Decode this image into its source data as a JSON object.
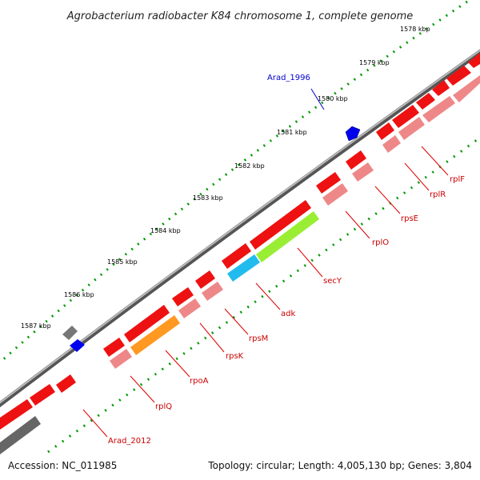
{
  "title": "Agrobacterium radiobacter K84 chromosome 1, complete genome",
  "accession_text": "Accession: NC_011985",
  "summary_text": "Topology: circular; Length: 4,005,130 bp; Genes: 3,804",
  "ruler_labels": [
    "1578 kbp",
    "1579 kbp",
    "1580 kbp",
    "1581 kbp",
    "1582 kbp",
    "1583 kbp",
    "1584 kbp",
    "1585 kbp",
    "1586 kbp",
    "1587 kbp"
  ],
  "genes": [
    {
      "name": "Arad_1996",
      "color": "#0000cc"
    },
    {
      "name": "rplF",
      "color": "#cc0000"
    },
    {
      "name": "rplR",
      "color": "#cc0000"
    },
    {
      "name": "rpsE",
      "color": "#cc0000"
    },
    {
      "name": "rplO",
      "color": "#cc0000"
    },
    {
      "name": "secY",
      "color": "#cc0000"
    },
    {
      "name": "adk",
      "color": "#cc0000"
    },
    {
      "name": "rpsM",
      "color": "#cc0000"
    },
    {
      "name": "rpsK",
      "color": "#cc0000"
    },
    {
      "name": "rpoA",
      "color": "#cc0000"
    },
    {
      "name": "rplQ",
      "color": "#cc0000"
    },
    {
      "name": "Arad_2012",
      "color": "#cc0000"
    }
  ],
  "colors": {
    "backbone": "#888888",
    "ruler_dots": "#009900",
    "cds_forward": "#ee1111",
    "cds_reverse": "#ee8888",
    "blue_feature": "#0000ee",
    "grey_feature": "#777777",
    "secY_overlay": "#99ee33",
    "adk_overlay": "#22bbee",
    "rpoA_overlay": "#ff9922"
  }
}
